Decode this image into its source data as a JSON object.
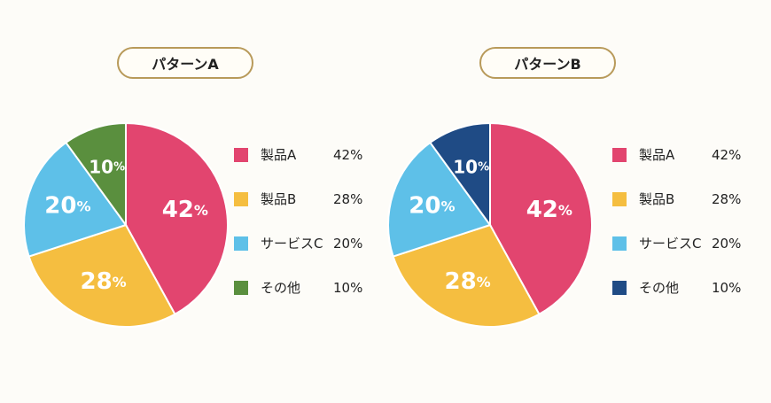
{
  "colors": {
    "product_a": "#e2456f",
    "product_b": "#f5be40",
    "service_c": "#5ec0e8",
    "other_a": "#5a8f3e",
    "other_b": "#1f4b85",
    "title_border": "#b89a5a"
  },
  "chart_data": [
    {
      "type": "pie",
      "title": "パターンA",
      "slices": [
        {
          "label": "製品A",
          "value": 42,
          "value_label": "42%",
          "color": "#e2456f"
        },
        {
          "label": "製品B",
          "value": 28,
          "value_label": "28%",
          "color": "#f5be40"
        },
        {
          "label": "サービスC",
          "value": 20,
          "value_label": "20%",
          "color": "#5ec0e8"
        },
        {
          "label": "その他",
          "value": 10,
          "value_label": "10%",
          "color": "#5a8f3e"
        }
      ],
      "legend_position": "right"
    },
    {
      "type": "pie",
      "title": "パターンB",
      "slices": [
        {
          "label": "製品A",
          "value": 42,
          "value_label": "42%",
          "color": "#e2456f"
        },
        {
          "label": "製品B",
          "value": 28,
          "value_label": "28%",
          "color": "#f5be40"
        },
        {
          "label": "サービスC",
          "value": 20,
          "value_label": "20%",
          "color": "#5ec0e8"
        },
        {
          "label": "その他",
          "value": 10,
          "value_label": "10%",
          "color": "#1f4b85"
        }
      ],
      "legend_position": "right"
    }
  ]
}
